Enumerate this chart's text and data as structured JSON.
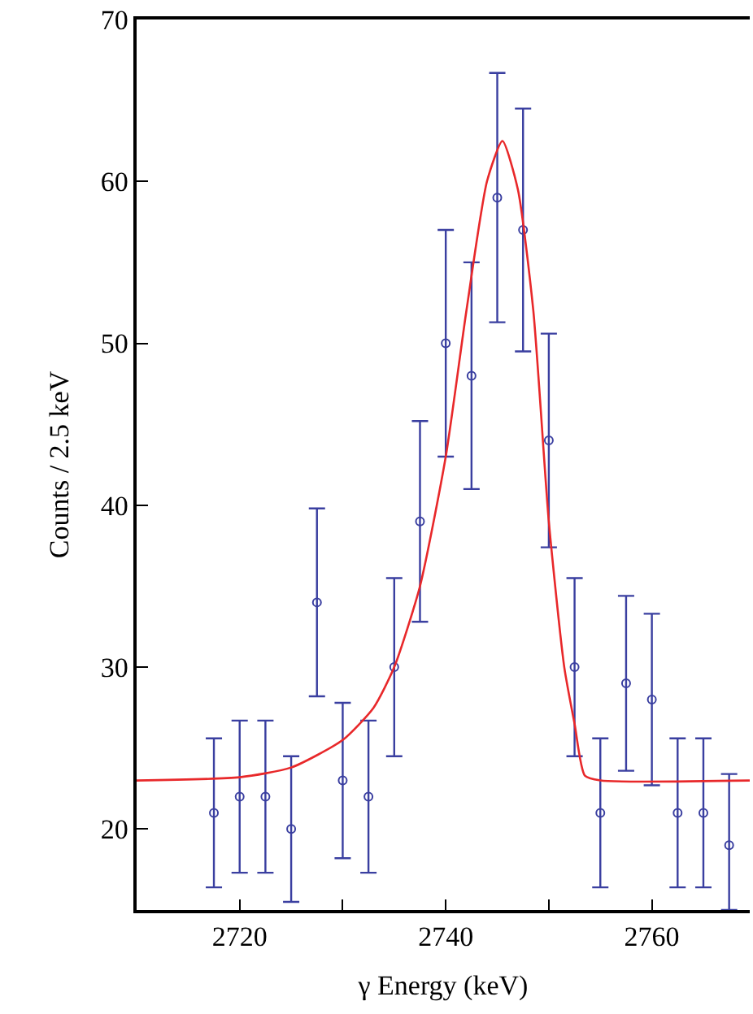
{
  "chart_data": {
    "type": "scatter",
    "xlabel": "γ Energy (keV)",
    "ylabel": "Counts / 2.5 keV",
    "xlim": [
      2710,
      2769.5
    ],
    "xticks": [
      2720,
      {
        "value": 2730,
        "label": null
      },
      2740,
      {
        "value": 2750,
        "label": null
      },
      2760
    ],
    "ylim": [
      15,
      70
    ],
    "yticks": [
      20,
      30,
      40,
      50,
      60,
      70
    ],
    "series": [
      {
        "color": "#3a3fa0",
        "marker": "circle",
        "x": [
          2717.5,
          2720,
          2722.5,
          2725,
          2727.5,
          2730,
          2732.5,
          2735,
          2737.5,
          2740,
          2742.5,
          2745,
          2747.5,
          2750,
          2752.5,
          2755,
          2757.5,
          2760,
          2762.5,
          2765,
          2767.5
        ],
        "values": [
          21,
          22,
          22,
          20,
          34,
          23,
          22,
          30,
          39,
          50,
          48,
          59,
          57,
          44,
          30,
          21,
          29,
          28,
          21,
          21,
          19
        ],
        "errors": [
          [
            16.4,
            25.6
          ],
          [
            17.3,
            26.7
          ],
          [
            17.3,
            26.7
          ],
          [
            15.5,
            24.5
          ],
          [
            28.2,
            39.8
          ],
          [
            18.2,
            27.8
          ],
          [
            17.3,
            26.7
          ],
          [
            24.5,
            35.5
          ],
          [
            32.8,
            45.2
          ],
          [
            43,
            57
          ],
          [
            41,
            55
          ],
          [
            51.3,
            66.7
          ],
          [
            49.5,
            64.5
          ],
          [
            37.4,
            50.6
          ],
          [
            24.5,
            35.5
          ],
          [
            16.4,
            25.6
          ],
          [
            23.6,
            34.4
          ],
          [
            22.7,
            33.3
          ],
          [
            16.4,
            25.6
          ],
          [
            16.4,
            25.6
          ],
          [
            15,
            23.4
          ]
        ]
      },
      {
        "type": "line",
        "color": "#e8282a",
        "marker": "none",
        "x": [
          2710,
          2720,
          2725,
          2730,
          2733,
          2735,
          2737.5,
          2740,
          2742,
          2744,
          2745.5,
          2747,
          2748.5,
          2750,
          2751.5,
          2752.5,
          2753.5,
          2755,
          2769.5
        ],
        "values": [
          23.0,
          23.2,
          23.8,
          25.5,
          27.5,
          30,
          35,
          43,
          52,
          60,
          62.5,
          59.5,
          52,
          39,
          30,
          26.5,
          23.3,
          23.0,
          23.0
        ]
      }
    ]
  }
}
